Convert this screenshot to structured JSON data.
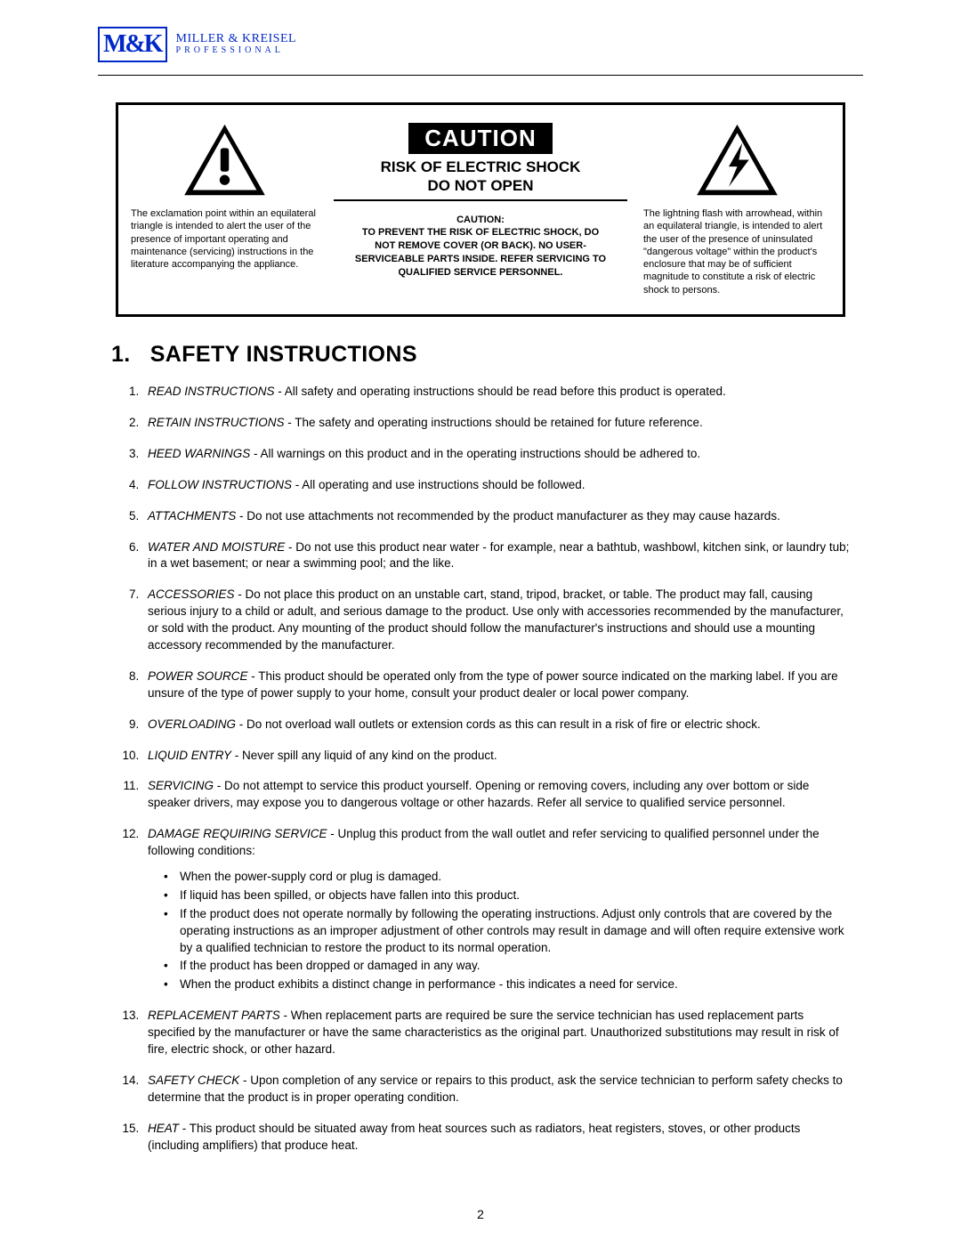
{
  "brand": {
    "logo": "M&K",
    "line1": "MILLER & KREISEL",
    "line2": "PROFESSIONAL"
  },
  "caution": {
    "banner": "CAUTION",
    "risk1": "RISK OF ELECTRIC SHOCK",
    "risk2": "DO NOT OPEN",
    "left_caption": "The exclamation point within an equilateral triangle is intended to alert the user of the presence of important operating and maintenance (servicing) instructions in the literature accompanying the appliance.",
    "center_caption_label": "CAUTION:",
    "center_caption_body": "TO PREVENT THE RISK OF ELECTRIC SHOCK, DO NOT REMOVE COVER (OR BACK). NO USER-SERVICEABLE PARTS INSIDE. REFER SERVICING TO QUALIFIED SERVICE PERSONNEL.",
    "right_caption": "The lightning flash with arrowhead, within an equilateral triangle, is intended to alert the user of the presence of uninsulated \"dangerous voltage\" within the product's enclosure that may be of sufficient magnitude to constitute a risk of electric shock to persons."
  },
  "section": {
    "number": "1.",
    "title": "SAFETY INSTRUCTIONS"
  },
  "items": [
    {
      "lead": "READ INSTRUCTIONS",
      "body": " - All safety and operating instructions should be read before this product is operated."
    },
    {
      "lead": "RETAIN INSTRUCTIONS",
      "body": " - The safety and operating instructions should be retained for future reference."
    },
    {
      "lead": "HEED WARNINGS",
      "body": " - All warnings on this product and in the operating instructions should be adhered to."
    },
    {
      "lead": "FOLLOW INSTRUCTIONS",
      "body": " - All operating and use instructions should be followed."
    },
    {
      "lead": "ATTACHMENTS",
      "body": " - Do not use attachments not recommended by the product manufacturer as they may cause hazards."
    },
    {
      "lead": "WATER AND MOISTURE",
      "body": " - Do not use this product near water - for example, near a bathtub, washbowl, kitchen sink, or laundry tub; in a wet basement; or near a swimming pool; and the like."
    },
    {
      "lead": "ACCESSORIES",
      "body": " - Do not place this product on an unstable cart, stand, tripod, bracket, or table. The product may fall, causing serious injury to a child or adult, and serious damage to the product. Use only with accessories recommended by the manufacturer, or sold with the product. Any mounting of the product should follow the manufacturer's instructions and should use a mounting accessory recommended by the manufacturer."
    },
    {
      "lead": "POWER SOURCE",
      "body": " - This product should be operated only from the type of power source indicated on the marking label. If you are unsure of the type of power supply to your home, consult your product dealer or local power company."
    },
    {
      "lead": "OVERLOADING",
      "body": " - Do not overload wall outlets or extension cords as this can result in a risk of fire or electric shock."
    },
    {
      "lead": "LIQUID ENTRY",
      "body": " - Never spill any liquid of any kind on the product."
    },
    {
      "lead": "SERVICING",
      "body": " - Do not attempt to service this product yourself. Opening or removing covers, including any over bottom or side speaker drivers, may expose you to dangerous voltage or other hazards. Refer all service to qualified service personnel."
    },
    {
      "lead": "DAMAGE REQUIRING SERVICE",
      "body": " - Unplug this product from the wall outlet and refer servicing to qualified personnel under the following conditions:",
      "subs": [
        "When the power-supply cord or plug is damaged.",
        "If liquid has been spilled, or objects have fallen into this product.",
        "If the product does not operate normally by following the operating instructions. Adjust only controls that are covered by the operating instructions as an improper adjustment of other controls may result in damage and will often require extensive work by a qualified technician to restore the product to its normal operation.",
        "If the product has been dropped or damaged in any way.",
        "When the product exhibits a distinct change in performance - this indicates a need for service."
      ]
    },
    {
      "lead": "REPLACEMENT PARTS",
      "body": " - When replacement parts are required be sure the service technician has used replacement parts specified by the manufacturer or have the same characteristics as the original part. Unauthorized substitutions may result in risk of fire, electric shock, or other hazard."
    },
    {
      "lead": "SAFETY CHECK",
      "body": " - Upon completion of any service or repairs to this product, ask the service technician to perform safety checks to determine that the product is in proper operating condition."
    },
    {
      "lead": "HEAT",
      "body": " - This product should be situated away from heat sources such as radiators, heat registers, stoves, or other products (including amplifiers) that produce heat."
    }
  ],
  "page_number": "2",
  "colors": {
    "brand_blue": "#0028c8",
    "text": "#000000",
    "background": "#ffffff"
  }
}
